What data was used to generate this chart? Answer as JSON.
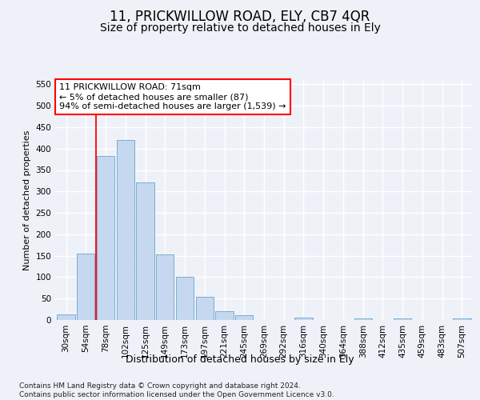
{
  "title": "11, PRICKWILLOW ROAD, ELY, CB7 4QR",
  "subtitle": "Size of property relative to detached houses in Ely",
  "xlabel": "Distribution of detached houses by size in Ely",
  "ylabel": "Number of detached properties",
  "categories": [
    "30sqm",
    "54sqm",
    "78sqm",
    "102sqm",
    "125sqm",
    "149sqm",
    "173sqm",
    "197sqm",
    "221sqm",
    "245sqm",
    "269sqm",
    "292sqm",
    "316sqm",
    "340sqm",
    "364sqm",
    "388sqm",
    "412sqm",
    "435sqm",
    "459sqm",
    "483sqm",
    "507sqm"
  ],
  "values": [
    14,
    155,
    383,
    420,
    322,
    153,
    100,
    55,
    20,
    11,
    0,
    0,
    5,
    0,
    0,
    4,
    0,
    4,
    0,
    0,
    4
  ],
  "bar_color": "#c5d8ef",
  "bar_edge_color": "#7aadd4",
  "vline_x": 1.5,
  "vline_color": "red",
  "annotation_line1": "11 PRICKWILLOW ROAD: 71sqm",
  "annotation_line2": "← 5% of detached houses are smaller (87)",
  "annotation_line3": "94% of semi-detached houses are larger (1,539) →",
  "annotation_box_color": "white",
  "annotation_box_edge": "red",
  "ylim": [
    0,
    560
  ],
  "yticks": [
    0,
    50,
    100,
    150,
    200,
    250,
    300,
    350,
    400,
    450,
    500,
    550
  ],
  "footer": "Contains HM Land Registry data © Crown copyright and database right 2024.\nContains public sector information licensed under the Open Government Licence v3.0.",
  "background_color": "#eef2f8",
  "grid_color": "white",
  "title_fontsize": 12,
  "subtitle_fontsize": 10,
  "axis_label_fontsize": 9,
  "ylabel_fontsize": 8,
  "tick_fontsize": 7.5,
  "annotation_fontsize": 8,
  "footer_fontsize": 6.5
}
